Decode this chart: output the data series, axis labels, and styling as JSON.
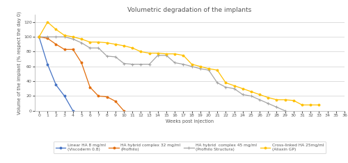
{
  "title": "Volumetric degradation of the implants",
  "xlabel": "Weeks post injection",
  "ylabel": "Volume of the implant (% respect the day 0)",
  "xlim": [
    -0.5,
    36
  ],
  "ylim": [
    0,
    130
  ],
  "yticks": [
    0,
    20,
    40,
    60,
    80,
    100,
    120
  ],
  "xticks": [
    0,
    1,
    2,
    3,
    4,
    5,
    6,
    7,
    8,
    9,
    10,
    11,
    12,
    13,
    14,
    15,
    16,
    17,
    18,
    19,
    20,
    21,
    22,
    23,
    24,
    25,
    26,
    27,
    28,
    29,
    30,
    31,
    32,
    33,
    34,
    35,
    36
  ],
  "series": [
    {
      "label": "Linear HA 8 mg/ml\n(Viscoderm 0.8)",
      "color": "#4472C4",
      "linestyle": "-",
      "marker": "o",
      "markersize": 2.0,
      "linewidth": 0.9,
      "x": [
        0,
        1,
        2,
        3,
        4
      ],
      "y": [
        100,
        63,
        35,
        20,
        0
      ]
    },
    {
      "label": "HA hybrid complex 32 mg/ml\n(Profhilo)",
      "color": "#E36C09",
      "linestyle": "-",
      "marker": "o",
      "markersize": 2.0,
      "linewidth": 0.9,
      "x": [
        0,
        1,
        2,
        3,
        4,
        5,
        6,
        7,
        8,
        9,
        10
      ],
      "y": [
        100,
        98,
        90,
        83,
        83,
        65,
        32,
        20,
        19,
        13,
        0
      ]
    },
    {
      "label": "HA hybrid  complex 45 mg/ml\n(Profhilo Structura)",
      "color": "#A5A5A5",
      "linestyle": "-",
      "marker": "+",
      "markersize": 3.5,
      "linewidth": 0.9,
      "x": [
        0,
        1,
        2,
        3,
        4,
        5,
        6,
        7,
        8,
        9,
        10,
        11,
        12,
        13,
        14,
        15,
        16,
        17,
        18,
        19,
        20,
        21,
        22,
        23,
        24,
        25,
        26,
        27,
        28,
        29
      ],
      "y": [
        100,
        100,
        100,
        100,
        97,
        92,
        85,
        85,
        74,
        73,
        64,
        63,
        63,
        63,
        75,
        75,
        65,
        63,
        60,
        57,
        55,
        38,
        32,
        30,
        22,
        20,
        15,
        10,
        5,
        0
      ]
    },
    {
      "label": "Cross-linked HA 25mg/ml\n(Aliaxin GP)",
      "color": "#FFC000",
      "linestyle": "-",
      "marker": "o",
      "markersize": 2.0,
      "linewidth": 0.9,
      "x": [
        0,
        1,
        2,
        3,
        4,
        5,
        6,
        7,
        8,
        9,
        10,
        11,
        12,
        13,
        14,
        15,
        16,
        17,
        18,
        19,
        20,
        21,
        22,
        23,
        24,
        25,
        26,
        27,
        28,
        29,
        30,
        31,
        32,
        33
      ],
      "y": [
        100,
        120,
        110,
        102,
        100,
        97,
        93,
        93,
        92,
        90,
        88,
        85,
        80,
        78,
        78,
        77,
        77,
        75,
        63,
        60,
        57,
        55,
        38,
        34,
        30,
        26,
        22,
        18,
        15,
        15,
        14,
        8,
        8,
        8
      ]
    }
  ],
  "background_color": "#ffffff",
  "grid_color": "#d0d0d0",
  "title_fontsize": 6.5,
  "label_fontsize": 4.8,
  "tick_fontsize": 4.5,
  "legend_fontsize": 4.2
}
